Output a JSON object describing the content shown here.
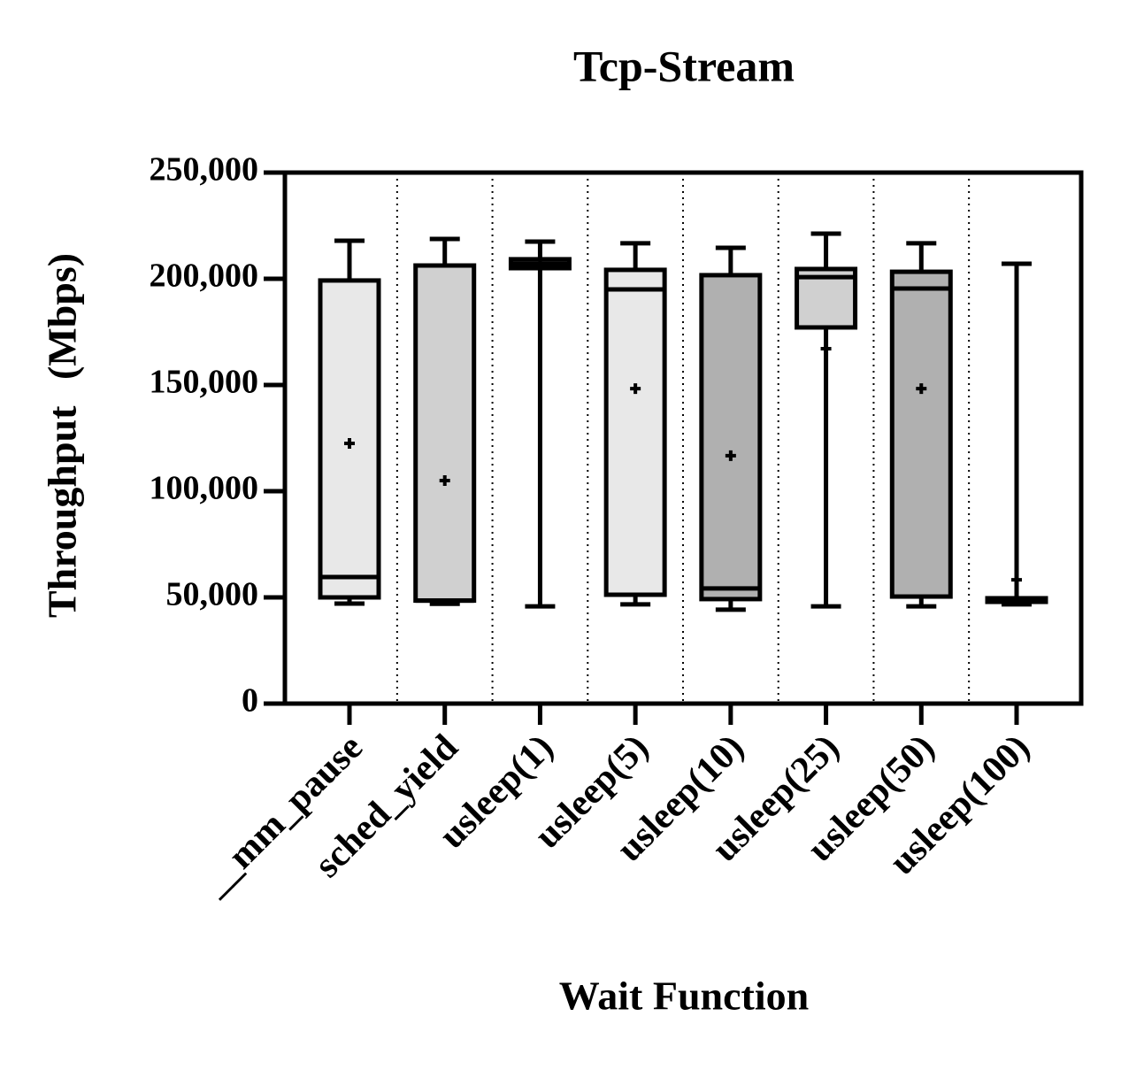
{
  "chart_data": {
    "type": "box",
    "title": "Tcp-Stream",
    "x_label": "Wait Function",
    "y_label": "Throughput (Mbps)",
    "categories": [
      "__mm_pause",
      "sched_yield",
      "usleep(1)",
      "usleep(5)",
      "usleep(10)",
      "usleep(25)",
      "usleep(50)",
      "usleep(100)"
    ],
    "series": [
      {
        "name": "min",
        "values": [
          47100,
          47000,
          45800,
          46700,
          44200,
          45800,
          45800,
          46700
        ]
      },
      {
        "name": "q1",
        "values": [
          50000,
          48500,
          205000,
          51250,
          49200,
          177100,
          50400,
          47900
        ]
      },
      {
        "name": "median",
        "values": [
          59600,
          48500,
          207100,
          195000,
          54200,
          200800,
          195400,
          48750
        ]
      },
      {
        "name": "q3",
        "values": [
          199200,
          206250,
          209200,
          204200,
          201700,
          204600,
          203300,
          49600
        ]
      },
      {
        "name": "max",
        "values": [
          217900,
          218750,
          217500,
          216700,
          214600,
          221250,
          216700,
          207100
        ]
      },
      {
        "name": "mean",
        "values": [
          122500,
          105000,
          207000,
          148300,
          116700,
          167100,
          148300,
          58300
        ]
      }
    ],
    "colors": [
      "#e8e8e8",
      "#d0d0d0",
      "#e8e8e8",
      "#e8e8e8",
      "#b0b0b0",
      "#d0d0d0",
      "#b0b0b0",
      "#e8e8e8"
    ],
    "ylim": [
      0,
      250000
    ],
    "yticks": [
      0,
      {
        "value": 50000,
        "label": "50,000"
      },
      {
        "value": 100000,
        "label": "100,000"
      },
      {
        "value": 150000,
        "label": "150,000"
      },
      {
        "value": 200000,
        "label": "200,000"
      },
      {
        "value": 250000,
        "label": "250,000"
      }
    ]
  }
}
